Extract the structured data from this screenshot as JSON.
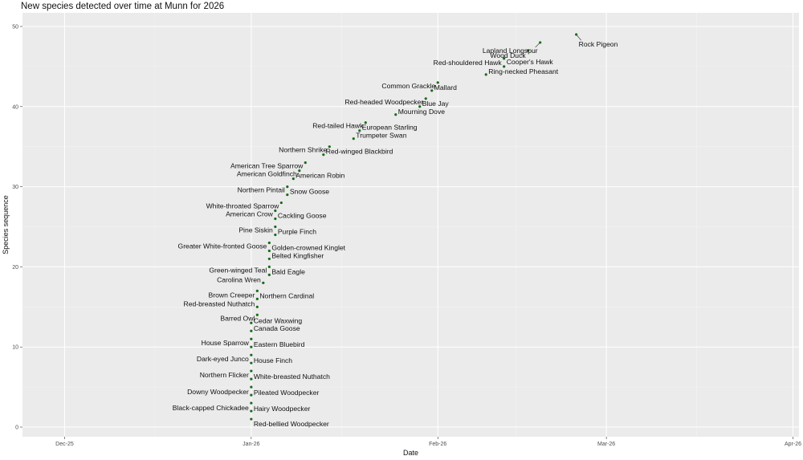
{
  "chart_data": {
    "type": "scatter",
    "title": "New species detected over time at Munn for 2026",
    "xlabel": "Date",
    "ylabel": "Species sequence",
    "x_ticks": [
      "Dec-25",
      "Jan-26",
      "Feb-26",
      "Mar-26",
      "Apr-26"
    ],
    "y_ticks": [
      "0",
      "10",
      "20",
      "30",
      "40",
      "50"
    ],
    "xlim": [
      "2025-11-24",
      "2026-04-02"
    ],
    "ylim": [
      -1.2,
      51.7
    ],
    "grid": true,
    "point_color": "#1a6b1a",
    "points": [
      {
        "x": "2026-01-01",
        "y": 1,
        "label": "Red-bellied Woodpecker"
      },
      {
        "x": "2026-01-01",
        "y": 2,
        "label": "Hairy Woodpecker"
      },
      {
        "x": "2026-01-01",
        "y": 3,
        "label": "Black-capped Chickadee"
      },
      {
        "x": "2026-01-01",
        "y": 4,
        "label": "Pileated Woodpecker"
      },
      {
        "x": "2026-01-01",
        "y": 5,
        "label": "Downy Woodpecker"
      },
      {
        "x": "2026-01-01",
        "y": 6,
        "label": "White-breasted Nuthatch"
      },
      {
        "x": "2026-01-01",
        "y": 7,
        "label": "Northern Flicker"
      },
      {
        "x": "2026-01-01",
        "y": 8,
        "label": "House Finch"
      },
      {
        "x": "2026-01-01",
        "y": 9,
        "label": "Dark-eyed Junco"
      },
      {
        "x": "2026-01-01",
        "y": 10,
        "label": "Eastern Bluebird"
      },
      {
        "x": "2026-01-01",
        "y": 11,
        "label": "House Sparrow"
      },
      {
        "x": "2026-01-01",
        "y": 12,
        "label": "Canada Goose"
      },
      {
        "x": "2026-01-01",
        "y": 13,
        "label": "Cedar Waxwing"
      },
      {
        "x": "2026-01-02",
        "y": 14,
        "label": "Barred Owl"
      },
      {
        "x": "2026-01-02",
        "y": 15,
        "label": "Red-breasted Nuthatch"
      },
      {
        "x": "2026-01-02",
        "y": 16,
        "label": "Northern Cardinal"
      },
      {
        "x": "2026-01-02",
        "y": 17,
        "label": "Brown Creeper"
      },
      {
        "x": "2026-01-03",
        "y": 18,
        "label": "Carolina Wren"
      },
      {
        "x": "2026-01-04",
        "y": 19,
        "label": "Bald Eagle"
      },
      {
        "x": "2026-01-04",
        "y": 20,
        "label": "Green-winged Teal"
      },
      {
        "x": "2026-01-04",
        "y": 21,
        "label": "Belted Kingfisher"
      },
      {
        "x": "2026-01-04",
        "y": 22,
        "label": "Golden-crowned Kinglet"
      },
      {
        "x": "2026-01-04",
        "y": 23,
        "label": "Greater White-fronted Goose"
      },
      {
        "x": "2026-01-05",
        "y": 24,
        "label": "Purple Finch"
      },
      {
        "x": "2026-01-05",
        "y": 25,
        "label": "Pine Siskin"
      },
      {
        "x": "2026-01-05",
        "y": 26,
        "label": "Cackling Goose"
      },
      {
        "x": "2026-01-05",
        "y": 27,
        "label": "American Crow"
      },
      {
        "x": "2026-01-06",
        "y": 28,
        "label": "White-throated Sparrow"
      },
      {
        "x": "2026-01-07",
        "y": 29,
        "label": "Snow Goose"
      },
      {
        "x": "2026-01-07",
        "y": 30,
        "label": "Northern Pintail"
      },
      {
        "x": "2026-01-08",
        "y": 31,
        "label": "American Robin"
      },
      {
        "x": "2026-01-09",
        "y": 32,
        "label": "American Goldfinch"
      },
      {
        "x": "2026-01-10",
        "y": 33,
        "label": "American Tree Sparrow"
      },
      {
        "x": "2026-01-13",
        "y": 34,
        "label": "Red-winged Blackbird"
      },
      {
        "x": "2026-01-14",
        "y": 35,
        "label": "Northern Shrike"
      },
      {
        "x": "2026-01-18",
        "y": 36,
        "label": "Trumpeter Swan"
      },
      {
        "x": "2026-01-19",
        "y": 37,
        "label": "European Starling"
      },
      {
        "x": "2026-01-20",
        "y": 38,
        "label": "Red-tailed Hawk"
      },
      {
        "x": "2026-01-25",
        "y": 39,
        "label": "Mourning Dove"
      },
      {
        "x": "2026-01-29",
        "y": 40,
        "label": "Blue Jay"
      },
      {
        "x": "2026-01-30",
        "y": 41,
        "label": "Red-headed Woodpecker"
      },
      {
        "x": "2026-01-31",
        "y": 42,
        "label": "Mallard"
      },
      {
        "x": "2026-02-01",
        "y": 43,
        "label": "Common Grackle"
      },
      {
        "x": "2026-02-09",
        "y": 44,
        "label": "Ring-necked Pheasant"
      },
      {
        "x": "2026-02-12",
        "y": 45,
        "label": "Cooper's Hawk"
      },
      {
        "x": "2026-02-12",
        "y": 46,
        "label": "Red-shouldered Hawk"
      },
      {
        "x": "2026-02-16",
        "y": 47,
        "label": "Wood Duck"
      },
      {
        "x": "2026-02-18",
        "y": 48,
        "label": "Lapland Longspur"
      },
      {
        "x": "2026-02-24",
        "y": 49,
        "label": "Rock Pigeon"
      }
    ]
  }
}
